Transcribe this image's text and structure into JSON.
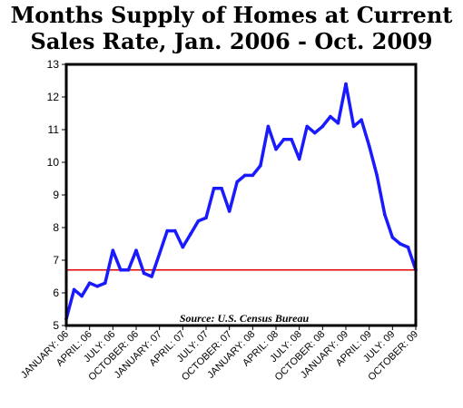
{
  "chart_data": {
    "type": "line",
    "title_lines": [
      "Months Supply of Homes at Current",
      "Sales Rate, Jan. 2006 - Oct. 2009"
    ],
    "source": "Source: U.S. Census Bureau",
    "ylim": [
      5,
      13
    ],
    "y_ticks": [
      "5",
      "6",
      "7",
      "8",
      "9",
      "10",
      "11",
      "12",
      "13"
    ],
    "x_tick_labels": [
      "JANUARY: 06",
      "APRIL: 06",
      "JULY: 06",
      "OCTOBER: 06",
      "JANUARY: 07",
      "APRIL: 07",
      "JULY: 07",
      "OCTOBER: 07",
      "JANUARY: 08",
      "APRIL: 08",
      "JULY: 08",
      "OCTOBER: 08",
      "JANUARY: 09",
      "APRIL: 09",
      "JULY: 09",
      "OCTOBER: 09"
    ],
    "x_tick_index": [
      0,
      3,
      6,
      9,
      12,
      15,
      18,
      21,
      24,
      27,
      30,
      33,
      36,
      39,
      42,
      45
    ],
    "reference_line": 6.7,
    "grid": false,
    "colors": {
      "series": "#1a1aff",
      "reference": "#e00000",
      "frame": "#000000"
    },
    "series": [
      {
        "values": [
          5.2,
          6.1,
          5.9,
          6.3,
          6.2,
          6.3,
          7.3,
          6.7,
          6.7,
          7.3,
          6.6,
          6.5,
          7.2,
          7.9,
          7.9,
          7.4,
          7.8,
          8.2,
          8.3,
          9.2,
          9.2,
          8.5,
          9.4,
          9.6,
          9.6,
          9.9,
          11.1,
          10.4,
          10.7,
          10.7,
          10.1,
          11.1,
          10.9,
          11.1,
          11.4,
          11.2,
          12.4,
          11.1,
          11.3,
          10.5,
          9.6,
          8.4,
          7.7,
          7.5,
          7.4,
          6.7
        ]
      }
    ]
  }
}
